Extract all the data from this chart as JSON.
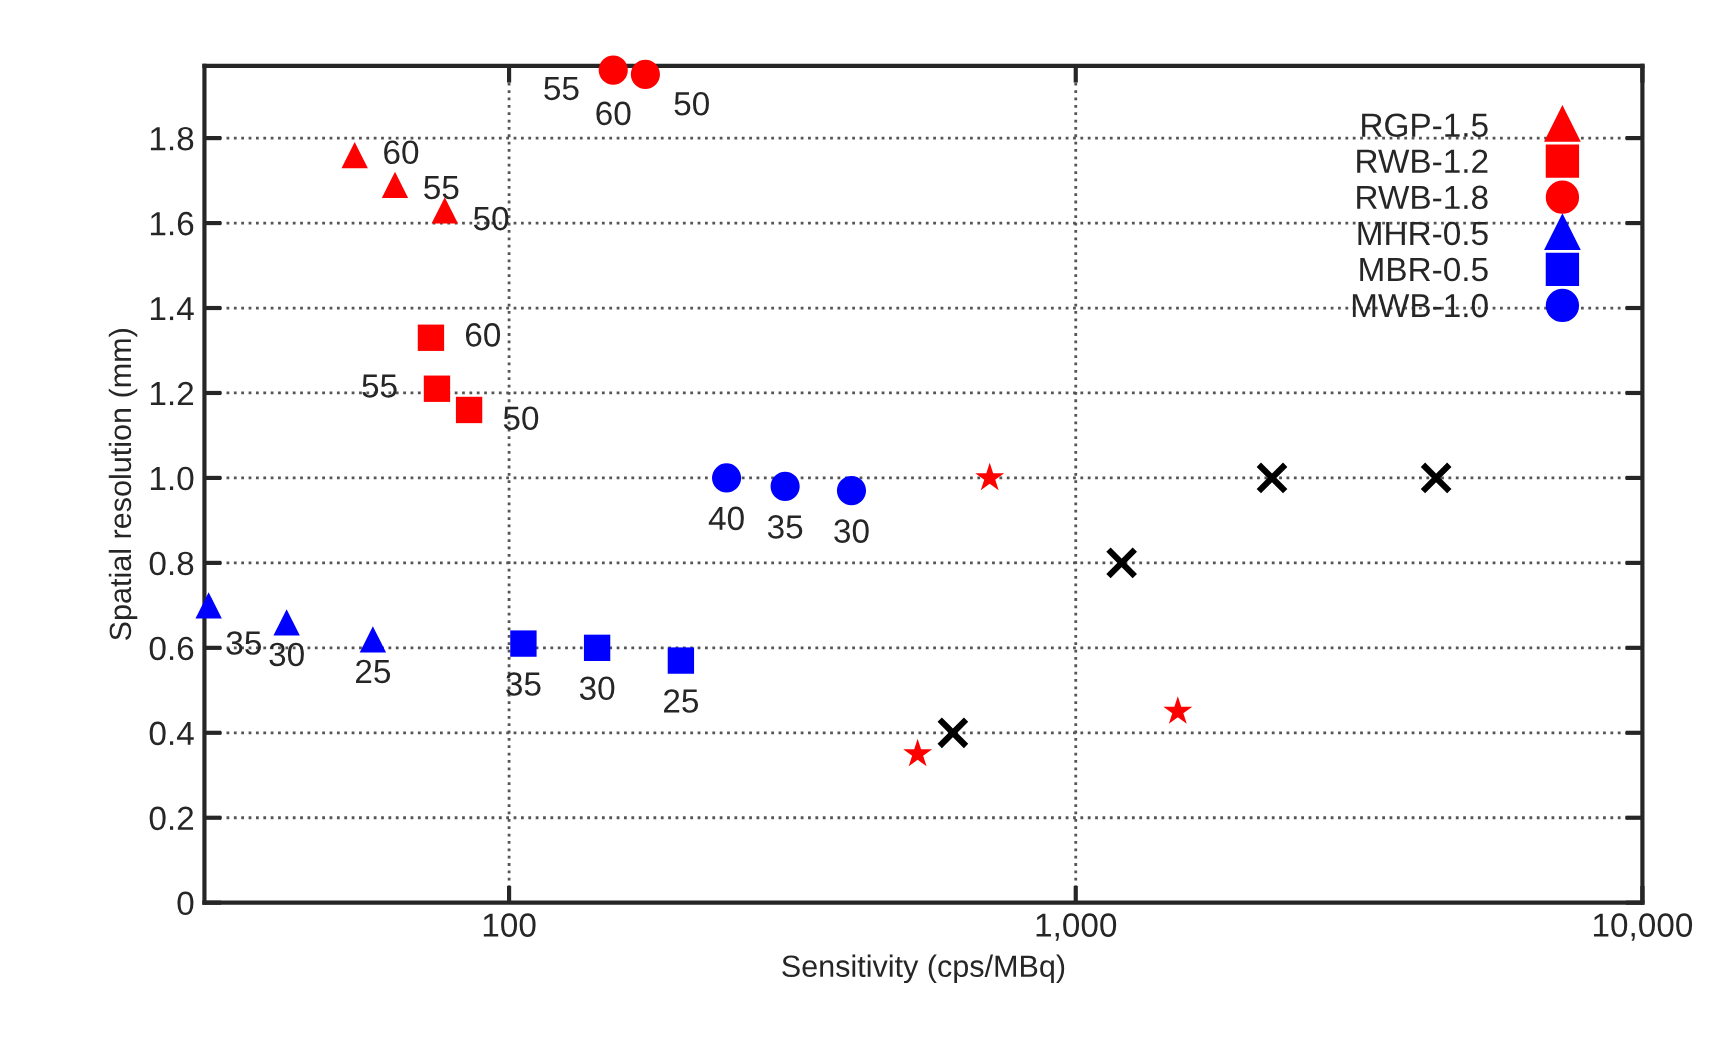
{
  "chart_data": {
    "type": "scatter",
    "xlabel": "Sensitivity (cps/MBq)",
    "ylabel": "Spatial resolution (mm)",
    "log": "x",
    "xlim": [
      29,
      10000
    ],
    "ylim": [
      0,
      1.97
    ],
    "xticks": [
      {
        "value": 100,
        "label": "100"
      },
      {
        "value": 1000,
        "label": "1,000"
      },
      {
        "value": 10000,
        "label": "10,000"
      }
    ],
    "yticks": [
      0,
      0.2,
      0.4,
      0.6,
      0.8,
      {
        "value": 1,
        "label": "1.0"
      },
      1.2,
      1.4,
      1.6,
      1.8
    ],
    "grid": true,
    "legend": "top right",
    "series": [
      {
        "name": "RGP-1.5",
        "color": "#ff0000",
        "marker": "triangle",
        "x": [
          53.4,
          62.9,
          77
        ],
        "values": [
          1.76,
          1.69,
          1.63
        ]
      },
      {
        "name": "RWB-1.2",
        "color": "#ff0000",
        "marker": "square",
        "x": [
          72.8,
          74.6,
          85
        ],
        "values": [
          1.33,
          1.21,
          1.16
        ]
      },
      {
        "name": "RWB-1.8",
        "color": "#ff0000",
        "marker": "circle",
        "x": [
          152.7,
          174
        ],
        "values": [
          1.96,
          1.95
        ]
      },
      {
        "name": "MHR-0.5",
        "color": "#0000ff",
        "marker": "triangle",
        "x": [
          29.5,
          40.5,
          57.5
        ],
        "values": [
          0.7,
          0.66,
          0.62
        ]
      },
      {
        "name": "MBR-0.5",
        "color": "#0000ff",
        "marker": "square",
        "x": [
          106,
          143,
          201
        ],
        "values": [
          0.61,
          0.6,
          0.57
        ]
      },
      {
        "name": "MWB-1.0",
        "color": "#0000ff",
        "marker": "circle",
        "x": [
          242,
          307,
          402
        ],
        "values": [
          1.0,
          0.98,
          0.97
        ]
      },
      {
        "color": "#000000",
        "marker": "cross",
        "x": [
          607,
          1205,
          2220,
          4325
        ],
        "values": [
          0.4,
          0.8,
          1.0,
          1.0
        ]
      },
      {
        "color": "#ff0000",
        "marker": "star",
        "x": [
          526,
          705,
          1514
        ],
        "values": [
          0.35,
          1.0,
          0.45
        ]
      }
    ],
    "annotations": [
      {
        "text": "60",
        "x": 53.4,
        "y": 1.76
      },
      {
        "text": "55",
        "x": 62.9,
        "y": 1.69
      },
      {
        "text": "50",
        "x": 77,
        "y": 1.63
      },
      {
        "text": "60",
        "x": 72.8,
        "y": 1.33
      },
      {
        "text": "55",
        "x": 74.6,
        "y": 1.21
      },
      {
        "text": "50",
        "x": 85,
        "y": 1.16
      },
      {
        "text": "55",
        "x": 152.7,
        "y": 1.96
      },
      {
        "text": "60",
        "x": 152.7,
        "y": 1.96
      },
      {
        "text": "50",
        "x": 174,
        "y": 1.95
      },
      {
        "text": "35",
        "x": 29.5,
        "y": 0.7
      },
      {
        "text": "30",
        "x": 40.5,
        "y": 0.66
      },
      {
        "text": "25",
        "x": 57.5,
        "y": 0.62
      },
      {
        "text": "35",
        "x": 106,
        "y": 0.61
      },
      {
        "text": "30",
        "x": 143,
        "y": 0.6
      },
      {
        "text": "25",
        "x": 201,
        "y": 0.57
      },
      {
        "text": "40",
        "x": 242,
        "y": 1.0
      },
      {
        "text": "35",
        "x": 307,
        "y": 0.98
      },
      {
        "text": "30",
        "x": 402,
        "y": 0.97
      }
    ]
  }
}
